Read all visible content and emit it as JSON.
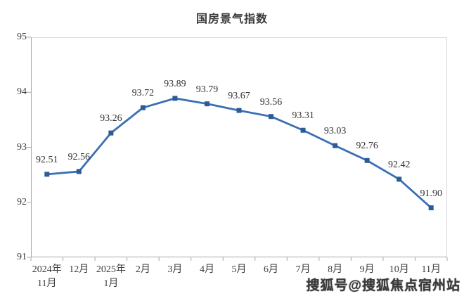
{
  "title": "国房景气指数",
  "watermark": "搜狐号@搜狐焦点宿州站",
  "chart_data": {
    "type": "line",
    "title": "国房景气指数",
    "categories": [
      [
        "2024年",
        "11月"
      ],
      [
        "12月"
      ],
      [
        "2025年",
        "1月"
      ],
      [
        "2月"
      ],
      [
        "3月"
      ],
      [
        "4月"
      ],
      [
        "5月"
      ],
      [
        "6月"
      ],
      [
        "7月"
      ],
      [
        "8月"
      ],
      [
        "9月"
      ],
      [
        "10月"
      ],
      [
        "11月"
      ]
    ],
    "values": [
      92.51,
      92.56,
      93.26,
      93.72,
      93.89,
      93.79,
      93.67,
      93.56,
      93.31,
      93.03,
      92.76,
      92.42,
      91.9
    ],
    "point_labels": [
      "92.51",
      "92.56",
      "93.26",
      "93.72",
      "93.89",
      "93.79",
      "93.67",
      "93.56",
      "93.31",
      "93.03",
      "92.76",
      "92.42",
      "91.90"
    ],
    "xlabel": "",
    "ylabel": "",
    "ylim": [
      91,
      95
    ],
    "yticks": [
      95,
      94,
      93,
      92,
      91
    ],
    "grid": false,
    "legend": "none",
    "colors": {
      "line": "#3a6fb5",
      "marker": "#2d5b96",
      "point_label": "#2f2f2f",
      "axis_line": "#a8a8a8",
      "plot_border": "#d9d9d9",
      "tick_text": "#3d3d3d"
    }
  }
}
